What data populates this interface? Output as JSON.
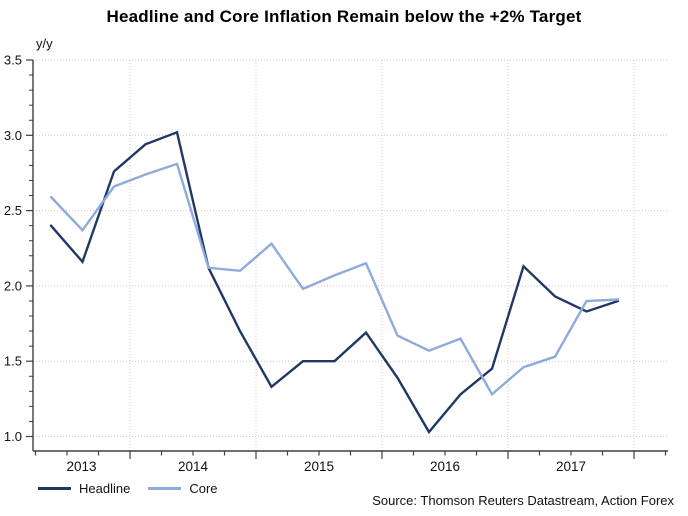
{
  "title": "Headline and Core Inflation Remain below the +2% Target",
  "y_axis_unit_label": "y/y",
  "source_text": "Source: Thomson Reuters Datastream, Action Forex",
  "legend": [
    {
      "label": "Headline",
      "color": "#1F3864"
    },
    {
      "label": "Core",
      "color": "#8FAADC"
    }
  ],
  "colors": {
    "headline_line": "#1F3864",
    "core_line": "#8FAADC",
    "axis": "#3f3f3f",
    "grid": "#c9c9c9",
    "tick_text": "#111111"
  },
  "chart_data": {
    "type": "line",
    "frequency": "quarterly",
    "categories": [
      "2013 Q2",
      "2013 Q3",
      "2013 Q4",
      "2014 Q1",
      "2014 Q2",
      "2014 Q3",
      "2014 Q4",
      "2015 Q1",
      "2015 Q2",
      "2015 Q3",
      "2015 Q4",
      "2016 Q1",
      "2016 Q2",
      "2016 Q3",
      "2016 Q4",
      "2017 Q1",
      "2017 Q2",
      "2017 Q3",
      "2017 Q4"
    ],
    "series": [
      {
        "name": "Headline",
        "color": "#1F3864",
        "values": [
          2.4,
          2.16,
          2.76,
          2.94,
          3.02,
          2.12,
          1.7,
          1.33,
          1.5,
          1.5,
          1.69,
          1.39,
          1.03,
          1.28,
          1.45,
          2.13,
          1.93,
          1.83,
          1.9
        ]
      },
      {
        "name": "Core",
        "color": "#8FAADC",
        "values": [
          2.59,
          2.37,
          2.66,
          2.74,
          2.81,
          2.12,
          2.1,
          2.28,
          1.98,
          2.07,
          2.15,
          1.67,
          1.57,
          1.65,
          1.28,
          1.46,
          1.53,
          1.9,
          1.91
        ]
      }
    ],
    "title": "Headline and Core Inflation Remain below the +2% Target",
    "xlabel": "",
    "ylabel": "y/y",
    "ylim": [
      1.0,
      3.5
    ],
    "y_ticks": [
      1.0,
      1.5,
      2.0,
      2.5,
      3.0,
      3.5
    ],
    "y_minor_tick_step": 0.1,
    "x_year_labels": [
      "2013",
      "2014",
      "2015",
      "2016",
      "2017"
    ],
    "grid": "dotted, horizontal at 0.5 steps and vertical at year boundaries",
    "legend_position": "bottom-left"
  }
}
